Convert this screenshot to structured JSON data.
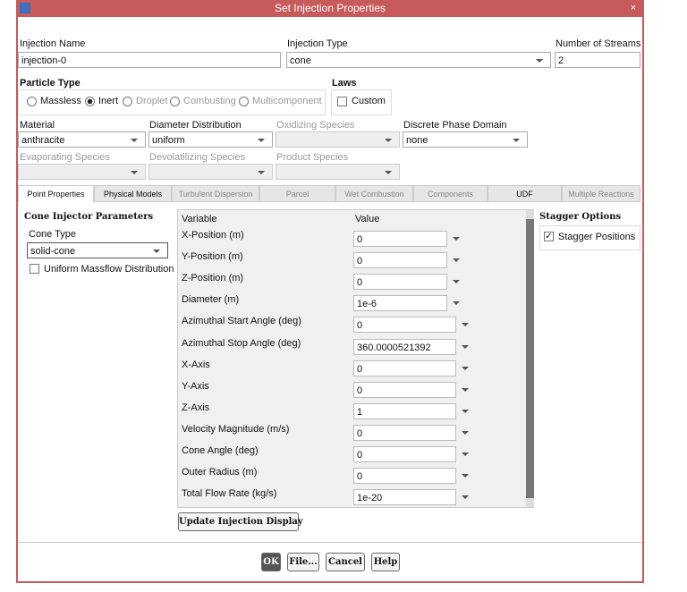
{
  "window": {
    "title": "Set Injection Properties"
  },
  "injection_name": {
    "label": "Injection Name",
    "value": "injection-0"
  },
  "injection_type": {
    "label": "Injection Type",
    "value": "cone"
  },
  "number_of_streams": {
    "label": "Number of Streams",
    "value": "2"
  },
  "particle_type": {
    "label": "Particle Type",
    "options": [
      "Massless",
      "Inert",
      "Droplet",
      "Combusting",
      "Multicomponent"
    ],
    "selected": 1
  },
  "laws": {
    "label": "Laws",
    "option": "Custom"
  },
  "material": {
    "label": "Material",
    "value": "anthracite"
  },
  "diameter_distribution": {
    "label": "Diameter Distribution",
    "value": "uniform"
  },
  "oxidizing_species": {
    "label": "Oxidizing Species"
  },
  "discrete_phase_domain": {
    "label": "Discrete Phase Domain",
    "value": "none"
  },
  "evaporating_species": {
    "label": "Evaporating Species"
  },
  "devolatilizing_species": {
    "label": "Devolatilizing Species"
  },
  "product_species": {
    "label": "Product Species"
  },
  "tabs": {
    "items": [
      "Point Properties",
      "Physical Models",
      "Turbulent Dispersion",
      "Parcel",
      "Wet Combustion",
      "Components",
      "UDF",
      "Multiple Reactions"
    ],
    "active": 0
  },
  "cone_injector": {
    "title": "Cone Injector Parameters",
    "cone_type_label": "Cone Type",
    "cone_type": "solid-cone",
    "uniform_massflow": "Uniform Massflow Distribution"
  },
  "table": {
    "headers": [
      "Variable",
      "Value"
    ],
    "rows": [
      [
        "X-Position (m)",
        "0"
      ],
      [
        "Y-Position (m)",
        "0"
      ],
      [
        "Z-Position (m)",
        "0"
      ],
      [
        "Diameter (m)",
        "1e-6"
      ],
      [
        "Azimuthal Start Angle (deg)",
        "0"
      ],
      [
        "Azimuthal Stop Angle (deg)",
        "360.0000521392"
      ],
      [
        "X-Axis",
        "0"
      ],
      [
        "Y-Axis",
        "0"
      ],
      [
        "Z-Axis",
        "1"
      ],
      [
        "Velocity Magnitude (m/s)",
        "0"
      ],
      [
        "Cone Angle (deg)",
        "0"
      ],
      [
        "Outer Radius (m)",
        "0"
      ],
      [
        "Total Flow Rate (kg/s)",
        "1e-20"
      ]
    ]
  },
  "stagger": {
    "title": "Stagger Options",
    "option": "Stagger Positions"
  },
  "update_button": "Update Injection Display",
  "buttons": [
    "OK",
    "File...",
    "Cancel",
    "Help"
  ]
}
